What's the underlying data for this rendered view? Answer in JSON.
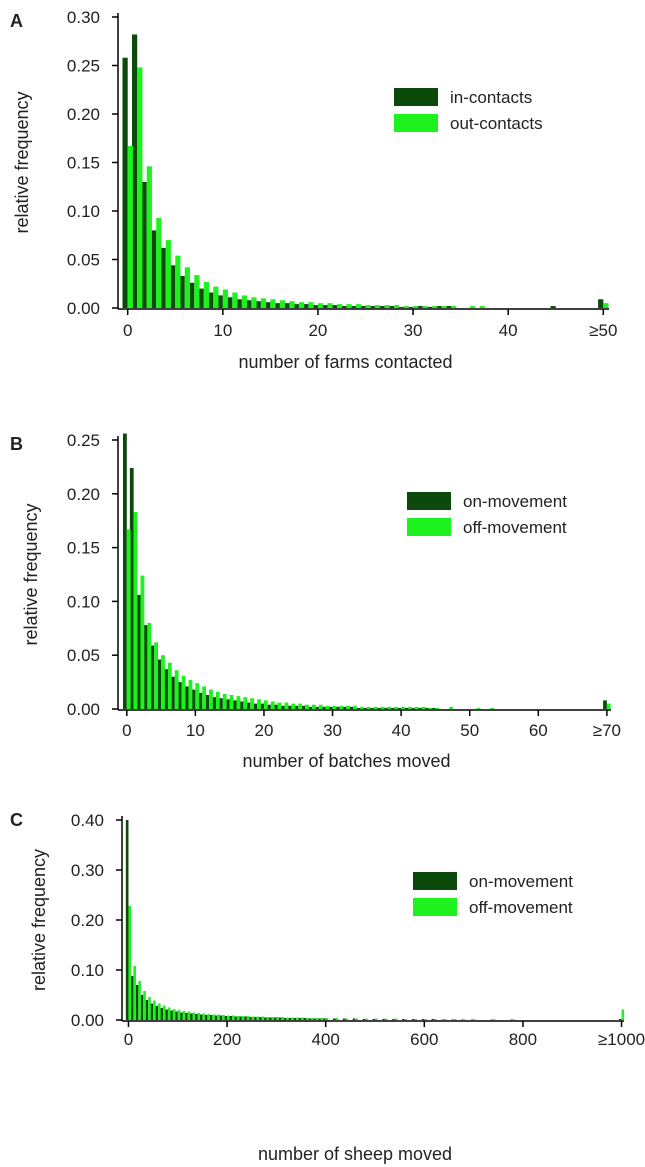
{
  "chart_data": [
    {
      "type": "bar",
      "panel_label": "A",
      "xlabel": "number of farms contacted",
      "ylabel": "relative frequency",
      "ylim": [
        0,
        0.3
      ],
      "yticks": [
        "0.00",
        "0.05",
        "0.10",
        "0.15",
        "0.20",
        "0.25",
        "0.30"
      ],
      "xticks": [
        "0",
        "10",
        "20",
        "30",
        "40",
        "≥50"
      ],
      "xlim": [
        -0.6,
        50.6
      ],
      "legend_position": "top-right",
      "colors": [
        "#0b4a0b",
        "#1ef21e"
      ],
      "series": [
        {
          "name": "in-contacts",
          "x": [
            0,
            1,
            2,
            3,
            4,
            5,
            6,
            7,
            8,
            9,
            10,
            11,
            12,
            13,
            14,
            15,
            16,
            17,
            18,
            19,
            20,
            21,
            22,
            23,
            24,
            25,
            26,
            27,
            28,
            29,
            30,
            31,
            32,
            33,
            34,
            45,
            50
          ],
          "values": [
            0.258,
            0.282,
            0.13,
            0.08,
            0.062,
            0.044,
            0.033,
            0.026,
            0.02,
            0.016,
            0.013,
            0.011,
            0.009,
            0.008,
            0.007,
            0.006,
            0.005,
            0.005,
            0.004,
            0.004,
            0.003,
            0.003,
            0.003,
            0.002,
            0.002,
            0.002,
            0.002,
            0.002,
            0.002,
            0.001,
            0.001,
            0.002,
            0.001,
            0.002,
            0.002,
            0.002,
            0.009
          ]
        },
        {
          "name": "out-contacts",
          "x": [
            0,
            1,
            2,
            3,
            4,
            5,
            6,
            7,
            8,
            9,
            10,
            11,
            12,
            13,
            14,
            15,
            16,
            17,
            18,
            19,
            20,
            21,
            22,
            23,
            24,
            25,
            26,
            27,
            28,
            29,
            30,
            31,
            32,
            33,
            34,
            36,
            37,
            50
          ],
          "values": [
            0.167,
            0.248,
            0.146,
            0.093,
            0.07,
            0.054,
            0.042,
            0.034,
            0.027,
            0.022,
            0.019,
            0.016,
            0.013,
            0.011,
            0.01,
            0.009,
            0.008,
            0.007,
            0.006,
            0.006,
            0.005,
            0.005,
            0.004,
            0.004,
            0.004,
            0.003,
            0.003,
            0.003,
            0.003,
            0.002,
            0.002,
            0.002,
            0.002,
            0.002,
            0.002,
            0.002,
            0.002,
            0.005
          ]
        }
      ]
    },
    {
      "type": "bar",
      "panel_label": "B",
      "xlabel": "number of batches moved",
      "ylabel": "relative frequency",
      "ylim": [
        0,
        0.25
      ],
      "yticks": [
        "0.00",
        "0.05",
        "0.10",
        "0.15",
        "0.20",
        "0.25"
      ],
      "xticks": [
        "0",
        "10",
        "20",
        "30",
        "40",
        "50",
        "60",
        "≥70"
      ],
      "xlim": [
        -0.7,
        70.6
      ],
      "legend_position": "top-right",
      "colors": [
        "#0b4a0b",
        "#1ef21e"
      ],
      "series": [
        {
          "name": "on-movement",
          "x": [
            0,
            1,
            2,
            3,
            4,
            5,
            6,
            7,
            8,
            9,
            10,
            11,
            12,
            13,
            14,
            15,
            16,
            17,
            18,
            19,
            20,
            21,
            22,
            23,
            24,
            25,
            26,
            27,
            28,
            29,
            30,
            31,
            32,
            33,
            34,
            35,
            36,
            37,
            38,
            39,
            40,
            41,
            42,
            43,
            44,
            45,
            70
          ],
          "values": [
            0.256,
            0.224,
            0.106,
            0.078,
            0.059,
            0.046,
            0.037,
            0.03,
            0.025,
            0.021,
            0.018,
            0.015,
            0.013,
            0.011,
            0.01,
            0.009,
            0.008,
            0.007,
            0.006,
            0.005,
            0.005,
            0.004,
            0.004,
            0.003,
            0.003,
            0.003,
            0.003,
            0.002,
            0.002,
            0.002,
            0.002,
            0.002,
            0.002,
            0.002,
            0.001,
            0.001,
            0.001,
            0.001,
            0.001,
            0.001,
            0.001,
            0.001,
            0.001,
            0.001,
            0.001,
            0.001,
            0.008
          ]
        },
        {
          "name": "off-movement",
          "x": [
            0,
            1,
            2,
            3,
            4,
            5,
            6,
            7,
            8,
            9,
            10,
            11,
            12,
            13,
            14,
            15,
            16,
            17,
            18,
            19,
            20,
            21,
            22,
            23,
            24,
            25,
            26,
            27,
            28,
            29,
            30,
            31,
            32,
            33,
            34,
            35,
            36,
            37,
            38,
            39,
            40,
            41,
            42,
            43,
            44,
            45,
            47,
            51,
            53,
            70
          ],
          "values": [
            0.167,
            0.183,
            0.124,
            0.08,
            0.062,
            0.05,
            0.043,
            0.036,
            0.031,
            0.027,
            0.024,
            0.021,
            0.018,
            0.016,
            0.014,
            0.013,
            0.012,
            0.011,
            0.01,
            0.009,
            0.008,
            0.007,
            0.006,
            0.006,
            0.005,
            0.005,
            0.004,
            0.004,
            0.004,
            0.003,
            0.003,
            0.003,
            0.003,
            0.003,
            0.002,
            0.002,
            0.002,
            0.002,
            0.002,
            0.002,
            0.002,
            0.002,
            0.002,
            0.002,
            0.001,
            0.001,
            0.002,
            0.001,
            0.001,
            0.005
          ]
        }
      ]
    },
    {
      "type": "bar",
      "panel_label": "C",
      "xlabel": "number of sheep moved",
      "ylabel": "relative frequency",
      "ylim": [
        0,
        0.4
      ],
      "yticks": [
        "0.00",
        "0.10",
        "0.20",
        "0.30",
        "0.40"
      ],
      "xticks": [
        "0",
        "200",
        "400",
        "600",
        "800",
        "≥1000"
      ],
      "xlim": [
        -5,
        1005
      ],
      "legend_position": "top-right",
      "colors": [
        "#0b4a0b",
        "#1ef21e"
      ],
      "series": [
        {
          "name": "on-movement",
          "x": [
            0,
            10,
            20,
            30,
            40,
            50,
            60,
            70,
            80,
            90,
            100,
            110,
            120,
            130,
            140,
            150,
            160,
            170,
            180,
            190,
            200,
            210,
            220,
            230,
            240,
            250,
            260,
            270,
            280,
            290,
            300,
            310,
            320,
            330,
            340,
            350,
            360,
            370,
            380,
            390,
            400,
            420,
            440,
            460,
            480,
            500,
            520,
            540,
            560,
            580,
            600,
            620,
            640,
            660,
            680,
            700,
            740,
            780,
            1000
          ],
          "values": [
            0.4,
            0.088,
            0.07,
            0.05,
            0.04,
            0.033,
            0.028,
            0.024,
            0.021,
            0.019,
            0.017,
            0.015,
            0.014,
            0.013,
            0.012,
            0.011,
            0.01,
            0.01,
            0.009,
            0.009,
            0.008,
            0.008,
            0.007,
            0.007,
            0.007,
            0.006,
            0.006,
            0.006,
            0.005,
            0.005,
            0.005,
            0.005,
            0.004,
            0.004,
            0.004,
            0.004,
            0.004,
            0.003,
            0.003,
            0.003,
            0.003,
            0.003,
            0.003,
            0.003,
            0.002,
            0.002,
            0.002,
            0.002,
            0.002,
            0.002,
            0.002,
            0.002,
            0.001,
            0.001,
            0.001,
            0.001,
            0.001,
            0.001,
            0.002
          ]
        },
        {
          "name": "off-movement",
          "x": [
            0,
            10,
            20,
            30,
            40,
            50,
            60,
            70,
            80,
            90,
            100,
            110,
            120,
            130,
            140,
            150,
            160,
            170,
            180,
            190,
            200,
            210,
            220,
            230,
            240,
            250,
            260,
            270,
            280,
            290,
            300,
            310,
            320,
            330,
            340,
            350,
            360,
            370,
            380,
            390,
            400,
            420,
            440,
            460,
            480,
            500,
            520,
            540,
            560,
            580,
            600,
            620,
            640,
            660,
            680,
            700,
            740,
            780,
            1000
          ],
          "values": [
            0.228,
            0.108,
            0.078,
            0.058,
            0.046,
            0.039,
            0.033,
            0.029,
            0.025,
            0.022,
            0.02,
            0.018,
            0.017,
            0.015,
            0.014,
            0.013,
            0.012,
            0.011,
            0.011,
            0.01,
            0.009,
            0.009,
            0.008,
            0.008,
            0.008,
            0.007,
            0.007,
            0.007,
            0.006,
            0.006,
            0.006,
            0.006,
            0.005,
            0.005,
            0.005,
            0.005,
            0.004,
            0.004,
            0.004,
            0.004,
            0.004,
            0.004,
            0.003,
            0.003,
            0.003,
            0.003,
            0.003,
            0.003,
            0.002,
            0.002,
            0.002,
            0.002,
            0.002,
            0.002,
            0.001,
            0.001,
            0.001,
            0.001,
            0.021
          ]
        }
      ]
    }
  ]
}
